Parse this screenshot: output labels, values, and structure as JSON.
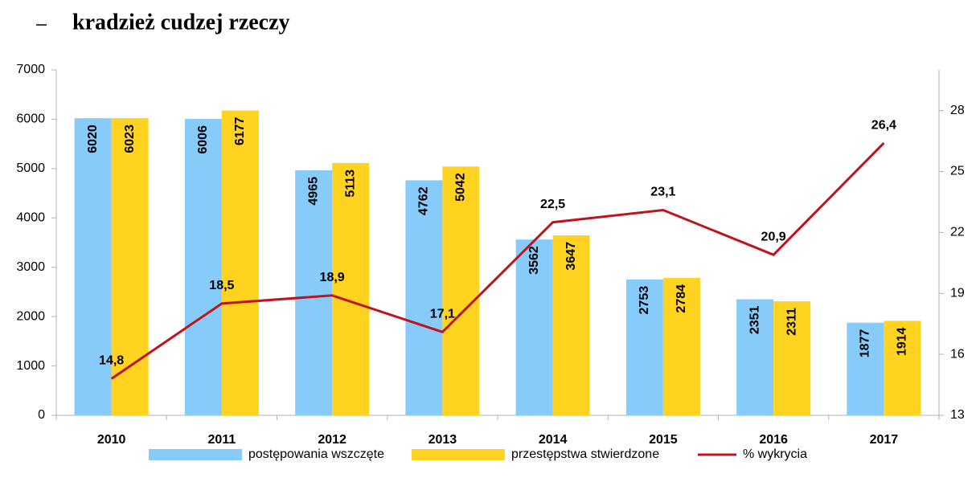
{
  "chart_data": {
    "type": "bar_line",
    "title": "kradzież cudzej rzeczy",
    "categories": [
      "2010",
      "2011",
      "2012",
      "2013",
      "2014",
      "2015",
      "2016",
      "2017"
    ],
    "series": [
      {
        "name": "postępowania wszczęte",
        "color": "#87cbfa",
        "values": [
          6020,
          6006,
          4965,
          4762,
          3562,
          2753,
          2351,
          1877
        ]
      },
      {
        "name": "przestępstwa stwierdzone",
        "color": "#ffd320",
        "values": [
          6023,
          6177,
          5113,
          5042,
          3647,
          2784,
          2311,
          1914
        ]
      },
      {
        "name": "% wykrycia",
        "color": "#c0141c",
        "axis": "y2",
        "type": "line",
        "values": [
          14.8,
          18.5,
          18.9,
          17.1,
          22.5,
          23.1,
          20.9,
          26.4
        ],
        "value_labels": [
          "14,8",
          "18,5",
          "18,9",
          "17,1",
          "22,5",
          "23,1",
          "20,9",
          "26,4"
        ]
      }
    ],
    "ylim": [
      0,
      7000
    ],
    "yticks": [
      0,
      1000,
      2000,
      3000,
      4000,
      5000,
      6000,
      7000
    ],
    "y2lim": [
      13,
      30
    ],
    "y2ticks": [
      13,
      16,
      19,
      22,
      25,
      28
    ],
    "legend": "bottom"
  }
}
